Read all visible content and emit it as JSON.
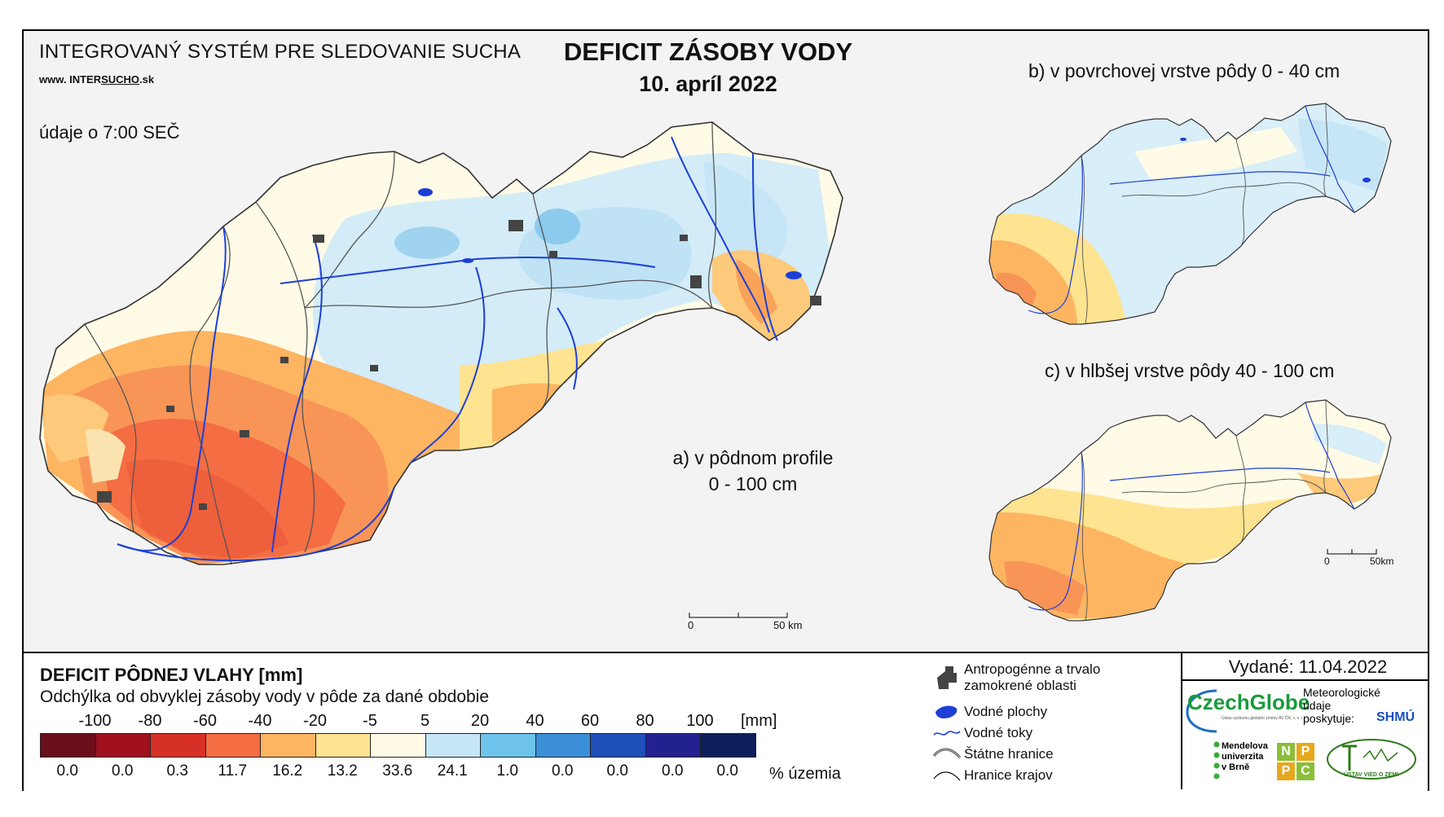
{
  "header": {
    "system_name": "INTEGROVANÝ SYSTÉM PRE SLEDOVANIE SUCHA",
    "website_prefix": "www. INTER",
    "website_mid": "SUCHO",
    "website_suffix": ".sk",
    "data_time": "údaje o 7:00 SEČ",
    "title": "DEFICIT ZÁSOBY VODY",
    "date": "10. apríl 2022"
  },
  "maps": {
    "a_label_line1": "a) v pôdnom profile",
    "a_label_line2": "0 - 100 cm",
    "b_label": "b) v povrchovej vrstve pôdy 0 - 40 cm",
    "c_label": "c) v hlbšej vrstve pôdy 40 - 100 cm",
    "scale_main_0": "0",
    "scale_main_50": "50 km",
    "scale_small_0": "0",
    "scale_small_50": "50km"
  },
  "legend": {
    "title": "DEFICIT PÔDNEJ VLAHY [mm]",
    "subtitle": "Odchýlka od obvyklej zásoby vody v pôde za dané obdobie",
    "unit": "[mm]",
    "percent_label": "% územia",
    "bin_labels": [
      "-100",
      "-80",
      "-60",
      "-40",
      "-20",
      "-5",
      "5",
      "20",
      "40",
      "60",
      "80",
      "100"
    ],
    "bins": [
      {
        "color": "#6b0f1a",
        "percent": "0.0"
      },
      {
        "color": "#a0101e",
        "percent": "0.0"
      },
      {
        "color": "#d73127",
        "percent": "0.3"
      },
      {
        "color": "#f46d43",
        "percent": "11.7"
      },
      {
        "color": "#fdb562",
        "percent": "16.2"
      },
      {
        "color": "#fee391",
        "percent": "13.2"
      },
      {
        "color": "#fffbe6",
        "percent": "33.6"
      },
      {
        "color": "#c6e6f7",
        "percent": "24.1"
      },
      {
        "color": "#6ec3ea",
        "percent": "1.0"
      },
      {
        "color": "#3a8fd6",
        "percent": "0.0"
      },
      {
        "color": "#1f4fb8",
        "percent": "0.0"
      },
      {
        "color": "#23208f",
        "percent": "0.0"
      },
      {
        "color": "#0d1f5a",
        "percent": "0.0"
      }
    ]
  },
  "key": {
    "anthropogenic_line1": "Antropogénne a trvalo",
    "anthropogenic_line2": "zamokrené oblasti",
    "water_bodies": "Vodné plochy",
    "rivers": "Vodné toky",
    "state_borders": "Štátne hranice",
    "region_borders": "Hranice krajov"
  },
  "publisher": {
    "issued": "Vydané: 11.04.2022",
    "czechglobe": "CzechGlobe",
    "czechglobe_sub": "Ústav výzkumu globální změny AV ČR, v. v. i.",
    "meteo_line1": "Meteorologické",
    "meteo_line2": "údaje",
    "meteo_line3": "poskytuje:",
    "shmu": "SHMÚ",
    "mendel_line1": "Mendelova",
    "mendel_line2": "univerzita",
    "mendel_line3": "v Brně",
    "nppc": [
      "N",
      "P",
      "P",
      "C"
    ],
    "uvz": "ÚSTAV VIED O ZEMI"
  }
}
